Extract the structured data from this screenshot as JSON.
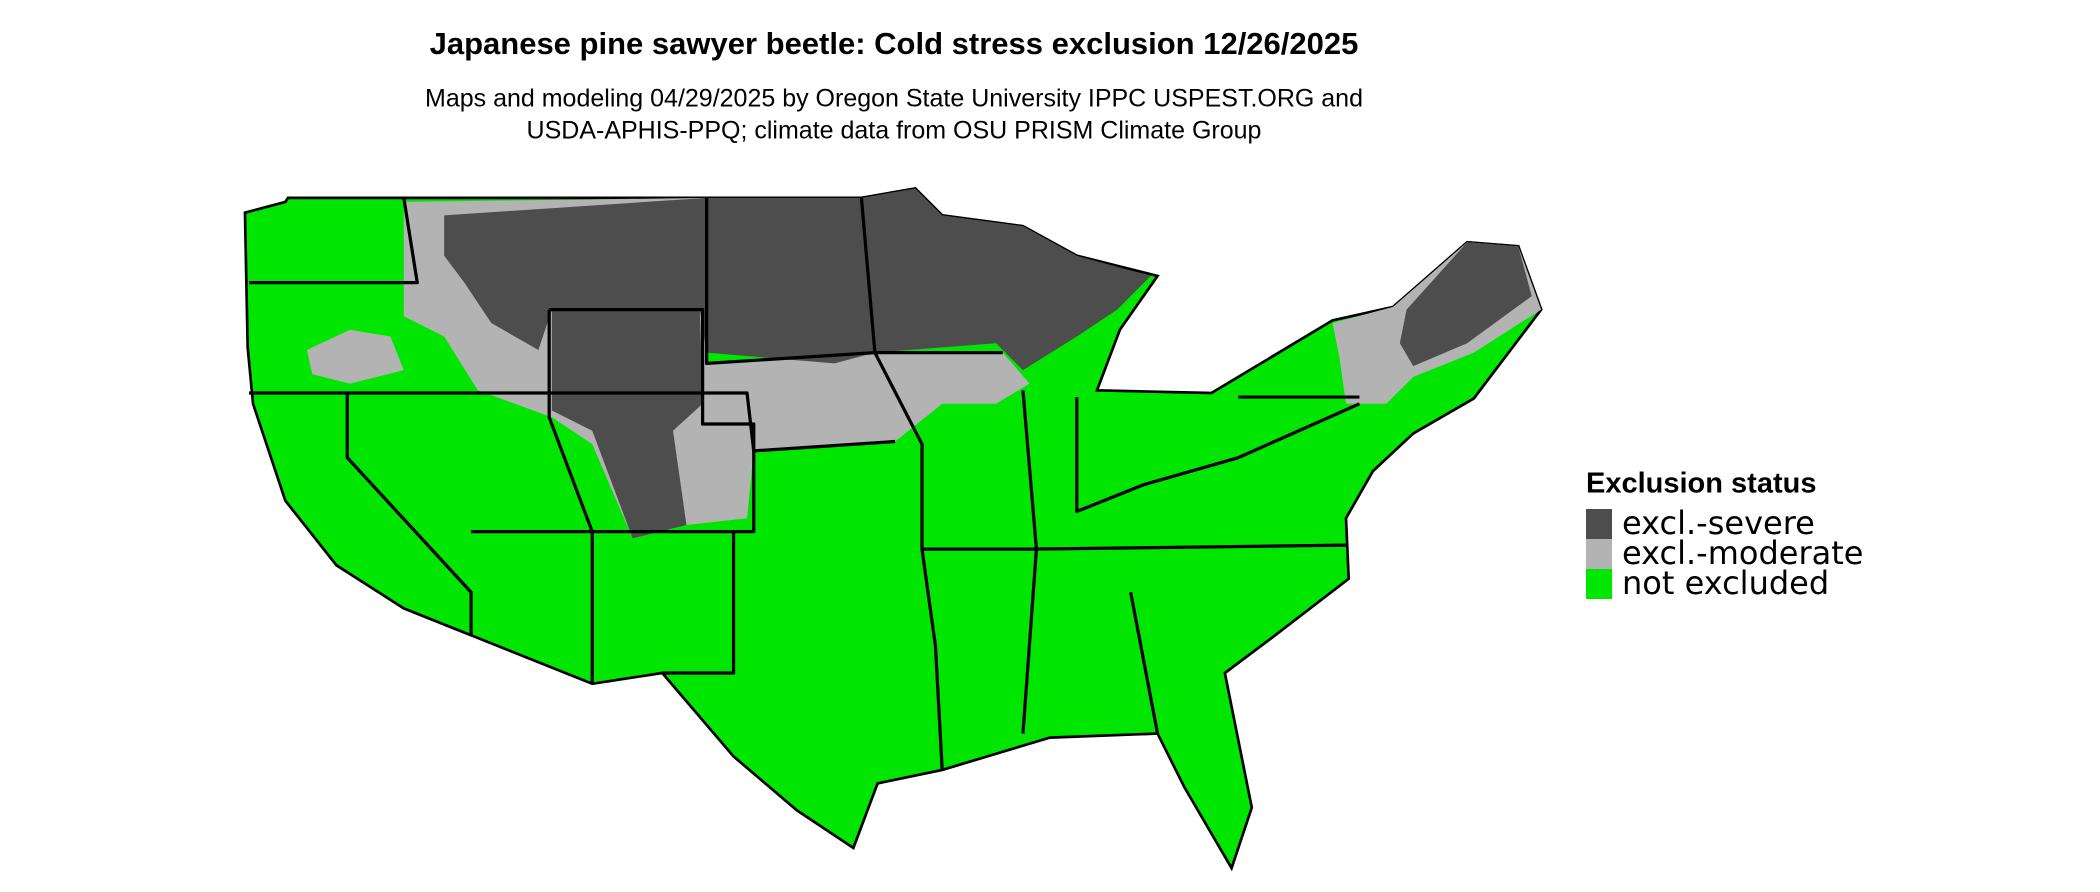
{
  "header": {
    "title": "Japanese pine sawyer beetle: Cold stress exclusion 12/26/2025",
    "subtitle": [
      "Maps and modeling 04/29/2025 by Oregon State University IPPC USPEST.ORG and",
      "USDA-APHIS-PPQ; climate data from OSU PRISM Climate Group"
    ]
  },
  "legend": {
    "title": "Exclusion status",
    "items": [
      {
        "label": "excl.-severe",
        "color": "#4d4d4d"
      },
      {
        "label": "excl.-moderate",
        "color": "#b3b3b3"
      },
      {
        "label": "not excluded",
        "color": "#00e600"
      }
    ]
  }
}
